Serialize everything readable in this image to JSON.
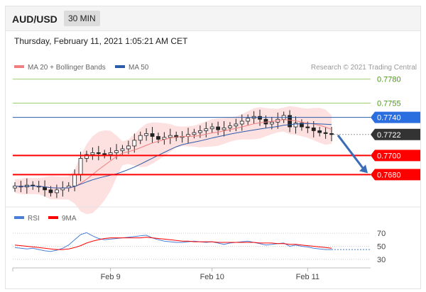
{
  "header": {
    "symbol": "AUD/USD",
    "timeframe": "30 MIN"
  },
  "datetime": "Thursday, February 11, 2021 1:05:21 AM CET",
  "legend": {
    "ma20": "MA 20 + Bollinger Bands",
    "ma50": "MA 50",
    "credit": "Research © 2021 Trading Central"
  },
  "rsi_legend": {
    "rsi": "RSI",
    "ma9": "9MA"
  },
  "colors": {
    "ma20": "#f08080",
    "ma50": "#2a5caa",
    "bands_fill": "#fde0e0",
    "support": "#ff0000",
    "resistance": "#7fbf3f",
    "pivot_blue": "#2a5caa",
    "current": "#333333",
    "rsi": "#4a7fd8",
    "arrow": "#3a6db5"
  },
  "chart_data": [
    {
      "type": "candlestick",
      "title": "AUD/USD 30 MIN",
      "ylim": [
        0.7655,
        0.7785
      ],
      "x_ticks": [
        "Feb 9",
        "Feb 10",
        "Feb 11"
      ],
      "close": [
        0.7668,
        0.7667,
        0.7669,
        0.7668,
        0.7667,
        0.7664,
        0.7661,
        0.7664,
        0.7666,
        0.7668,
        0.768,
        0.7697,
        0.7701,
        0.7703,
        0.7702,
        0.7701,
        0.7703,
        0.7705,
        0.7707,
        0.771,
        0.7716,
        0.7721,
        0.7723,
        0.772,
        0.7717,
        0.7719,
        0.7721,
        0.7719,
        0.772,
        0.7722,
        0.7724,
        0.7726,
        0.7728,
        0.773,
        0.7727,
        0.7729,
        0.7731,
        0.7733,
        0.7736,
        0.7739,
        0.7741,
        0.7738,
        0.7733,
        0.7735,
        0.7738,
        0.7742,
        0.773,
        0.7734,
        0.773,
        0.7729,
        0.7726,
        0.7724,
        0.7723,
        0.7722
      ],
      "levels": [
        {
          "value": 0.778,
          "label": "0.7780",
          "kind": "resistance"
        },
        {
          "value": 0.7755,
          "label": "0.7755",
          "kind": "resistance"
        },
        {
          "value": 0.774,
          "label": "0.7740",
          "kind": "pivot"
        },
        {
          "value": 0.7722,
          "label": "0.7722",
          "kind": "current"
        },
        {
          "value": 0.77,
          "label": "0.7700",
          "kind": "support"
        },
        {
          "value": 0.768,
          "label": "0.7680",
          "kind": "support"
        }
      ],
      "forecast": {
        "from": 0.7722,
        "to": 0.768
      }
    },
    {
      "type": "line",
      "title": "RSI",
      "ylim": [
        20,
        80
      ],
      "y_ticks": [
        70,
        50,
        30
      ],
      "rsi": [
        48,
        47,
        46,
        47,
        45,
        43,
        42,
        44,
        47,
        52,
        60,
        68,
        71,
        66,
        62,
        60,
        61,
        62,
        63,
        64,
        65,
        66,
        67,
        63,
        60,
        58,
        57,
        56,
        56,
        57,
        58,
        57,
        56,
        57,
        55,
        53,
        55,
        56,
        57,
        58,
        56,
        54,
        52,
        53,
        54,
        55,
        50,
        52,
        50,
        49,
        47,
        46,
        45,
        45
      ],
      "ma9": [
        52,
        51,
        50,
        49,
        48,
        47,
        46,
        45,
        45,
        46,
        48,
        51,
        55,
        58,
        60,
        62,
        63,
        63,
        63,
        63,
        63,
        63,
        64,
        63,
        62,
        61,
        60,
        59,
        58,
        58,
        57,
        57,
        57,
        57,
        56,
        56,
        56,
        56,
        56,
        56,
        56,
        55,
        55,
        55,
        54,
        54,
        53,
        53,
        52,
        51,
        50,
        49,
        48,
        47
      ]
    }
  ]
}
